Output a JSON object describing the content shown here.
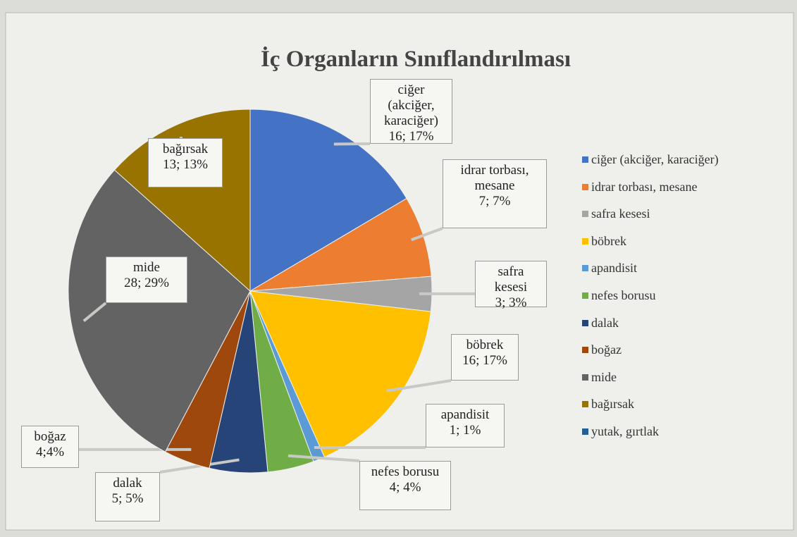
{
  "chart_data": {
    "type": "pie",
    "title": "İç Organların Sınıflandırılması",
    "categories": [
      "ciğer (akciğer, karaciğer)",
      "idrar torbası, mesane",
      "safra kesesi",
      "böbrek",
      "apandisit",
      "nefes borusu",
      "dalak",
      "boğaz",
      "mide",
      "bağırsak",
      "yutak, gırtlak"
    ],
    "values": [
      16,
      7,
      3,
      16,
      1,
      4,
      5,
      4,
      28,
      13,
      0
    ],
    "value_labels": [
      "16; 17%",
      "7; 7%",
      "3; 3%",
      "16; 17%",
      "1; 1%",
      "4; 4%",
      "5; 5%",
      "4;4%",
      "28; 29%",
      "13; 13%",
      null
    ],
    "colors": [
      "#4472c4",
      "#ed7d31",
      "#a5a5a5",
      "#ffc000",
      "#5b9bd5",
      "#70ad47",
      "#264478",
      "#9e480e",
      "#636363",
      "#997300",
      "#255e91"
    ],
    "legend": "right"
  }
}
